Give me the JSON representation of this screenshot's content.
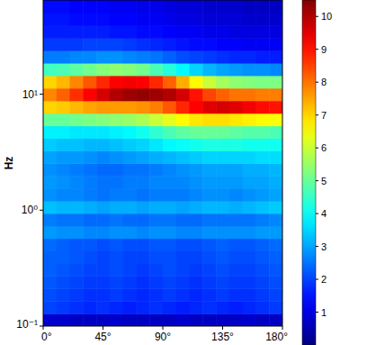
{
  "chart_data": {
    "type": "heatmap",
    "y_label": "Hz",
    "log": "y",
    "x": [
      5,
      15,
      25,
      35,
      45,
      55,
      65,
      75,
      85,
      95,
      105,
      115,
      125,
      135,
      145,
      155,
      165,
      175
    ],
    "y": [
      0.113,
      0.145,
      0.186,
      0.239,
      0.306,
      0.393,
      0.504,
      0.646,
      0.828,
      1.06,
      1.36,
      1.75,
      2.24,
      2.87,
      3.68,
      4.72,
      6.05,
      7.76,
      9.95,
      12.8,
      16.4,
      21.0,
      26.9,
      34.5,
      44.3,
      56.8
    ],
    "xlim": [
      0,
      180
    ],
    "ylim": [
      0.1,
      65
    ],
    "xticks": [
      {
        "value": 0,
        "label": "0°"
      },
      {
        "value": 45,
        "label": "45°"
      },
      {
        "value": 90,
        "label": "90°"
      },
      {
        "value": 135,
        "label": "135°"
      },
      {
        "value": 180,
        "label": "180°"
      }
    ],
    "yticks": [
      {
        "value": 0.1,
        "label": "10⁻¹"
      },
      {
        "value": 1,
        "label": "10⁰"
      },
      {
        "value": 10,
        "label": "10¹"
      }
    ],
    "colorbar": {
      "range": [
        0,
        10.5
      ],
      "ticks": [
        1,
        2,
        3,
        4,
        5,
        6,
        7,
        8,
        9,
        10
      ]
    },
    "values": [
      [
        0.8,
        0.8,
        0.7,
        0.7,
        0.7,
        0.8,
        0.7,
        0.7,
        0.7,
        0.7,
        0.8,
        0.7,
        0.7,
        0.7,
        0.7,
        0.8,
        0.7,
        0.7
      ],
      [
        2.0,
        1.9,
        1.8,
        1.7,
        1.8,
        1.7,
        1.6,
        1.7,
        1.8,
        1.7,
        1.6,
        1.7,
        1.8,
        1.7,
        1.6,
        1.7,
        1.8,
        1.9
      ],
      [
        2.1,
        2.0,
        1.9,
        1.8,
        1.8,
        1.9,
        1.8,
        1.7,
        1.8,
        1.9,
        1.8,
        1.7,
        1.8,
        1.9,
        1.8,
        1.8,
        1.9,
        2.0
      ],
      [
        2.2,
        2.1,
        2.0,
        1.9,
        1.9,
        2.0,
        1.9,
        1.8,
        1.9,
        2.0,
        1.9,
        1.8,
        1.9,
        2.0,
        1.9,
        1.9,
        2.0,
        2.1
      ],
      [
        2.3,
        2.2,
        2.1,
        2.0,
        2.0,
        2.1,
        2.0,
        1.9,
        2.0,
        2.1,
        2.0,
        1.9,
        2.0,
        2.1,
        2.0,
        2.0,
        2.1,
        2.2
      ],
      [
        2.3,
        2.3,
        2.2,
        2.1,
        2.0,
        2.1,
        2.0,
        2.0,
        2.1,
        2.1,
        2.0,
        2.0,
        2.1,
        2.2,
        2.1,
        2.1,
        2.2,
        2.3
      ],
      [
        2.4,
        2.3,
        2.2,
        2.2,
        2.1,
        2.2,
        2.1,
        2.1,
        2.2,
        2.2,
        2.1,
        2.1,
        2.2,
        2.3,
        2.2,
        2.2,
        2.3,
        2.4
      ],
      [
        2.9,
        2.8,
        2.8,
        2.7,
        2.7,
        2.8,
        2.8,
        2.7,
        2.8,
        2.8,
        2.7,
        2.7,
        2.8,
        2.8,
        2.8,
        2.8,
        2.9,
        2.9
      ],
      [
        2.6,
        2.5,
        2.5,
        2.4,
        2.4,
        2.5,
        2.4,
        2.4,
        2.5,
        2.5,
        2.4,
        2.4,
        2.5,
        2.5,
        2.5,
        2.5,
        2.6,
        2.7
      ],
      [
        3.3,
        3.2,
        3.2,
        3.1,
        3.0,
        3.1,
        3.1,
        3.0,
        3.1,
        3.1,
        3.0,
        3.1,
        3.2,
        3.2,
        3.1,
        3.2,
        3.3,
        3.4
      ],
      [
        2.8,
        2.7,
        2.7,
        2.6,
        2.5,
        2.6,
        2.6,
        2.5,
        2.6,
        2.6,
        2.6,
        2.7,
        2.8,
        2.8,
        2.7,
        2.8,
        2.9,
        3.0
      ],
      [
        2.9,
        2.8,
        2.7,
        2.6,
        2.5,
        2.5,
        2.6,
        2.6,
        2.7,
        2.7,
        2.7,
        2.8,
        2.9,
        2.9,
        2.9,
        3.0,
        3.0,
        3.1
      ],
      [
        2.8,
        2.7,
        2.6,
        2.5,
        2.4,
        2.4,
        2.5,
        2.5,
        2.6,
        2.7,
        2.8,
        2.9,
        3.0,
        3.0,
        3.0,
        3.1,
        3.1,
        3.2
      ],
      [
        3.0,
        2.9,
        2.9,
        2.8,
        2.7,
        2.8,
        2.9,
        3.0,
        3.1,
        3.2,
        3.3,
        3.4,
        3.5,
        3.5,
        3.5,
        3.5,
        3.6,
        3.6
      ],
      [
        3.4,
        3.3,
        3.3,
        3.2,
        3.2,
        3.3,
        3.4,
        3.5,
        3.7,
        3.9,
        4.0,
        4.1,
        4.2,
        4.2,
        4.2,
        4.1,
        4.1,
        4.1
      ],
      [
        3.8,
        3.8,
        3.7,
        3.7,
        3.7,
        3.8,
        3.9,
        4.1,
        4.4,
        4.7,
        4.9,
        5.0,
        5.0,
        5.0,
        4.9,
        4.8,
        4.8,
        4.7
      ],
      [
        5.0,
        5.0,
        5.1,
        5.2,
        5.3,
        5.4,
        5.5,
        5.7,
        6.0,
        6.3,
        6.6,
        6.8,
        6.9,
        6.9,
        6.8,
        6.7,
        6.6,
        6.5
      ],
      [
        7.0,
        7.1,
        7.3,
        7.5,
        7.6,
        7.6,
        7.6,
        7.7,
        7.9,
        8.3,
        8.8,
        9.2,
        9.5,
        9.6,
        9.5,
        9.3,
        9.1,
        9.0
      ],
      [
        7.8,
        8.2,
        8.7,
        9.2,
        9.6,
        10.0,
        10.2,
        10.3,
        10.2,
        10.0,
        9.6,
        9.0,
        8.5,
        8.2,
        8.0,
        8.0,
        7.9,
        7.9
      ],
      [
        7.0,
        7.3,
        7.8,
        8.3,
        8.8,
        9.2,
        9.3,
        9.2,
        8.8,
        8.2,
        7.4,
        6.6,
        6.0,
        5.6,
        5.4,
        5.3,
        5.2,
        5.2
      ],
      [
        4.6,
        4.7,
        4.9,
        5.1,
        5.3,
        5.4,
        5.3,
        5.1,
        4.7,
        4.3,
        3.9,
        3.5,
        3.2,
        3.0,
        2.9,
        2.8,
        2.8,
        2.7
      ],
      [
        2.6,
        2.6,
        2.7,
        2.7,
        2.8,
        2.8,
        2.7,
        2.6,
        2.5,
        2.3,
        2.1,
        2.0,
        1.9,
        1.8,
        1.7,
        1.7,
        1.6,
        1.6
      ],
      [
        1.9,
        1.9,
        1.9,
        2.0,
        2.0,
        2.0,
        1.9,
        1.8,
        1.7,
        1.6,
        1.5,
        1.4,
        1.4,
        1.3,
        1.3,
        1.2,
        1.2,
        1.2
      ],
      [
        1.6,
        1.6,
        1.6,
        1.6,
        1.6,
        1.5,
        1.5,
        1.4,
        1.4,
        1.3,
        1.2,
        1.2,
        1.1,
        1.1,
        1.0,
        1.0,
        1.0,
        1.0
      ],
      [
        1.5,
        1.5,
        1.4,
        1.4,
        1.4,
        1.3,
        1.3,
        1.2,
        1.2,
        1.1,
        1.0,
        1.0,
        0.9,
        0.9,
        0.9,
        0.8,
        0.8,
        0.8
      ],
      [
        1.4,
        1.4,
        1.3,
        1.3,
        1.3,
        1.2,
        1.2,
        1.1,
        1.1,
        1.0,
        0.9,
        0.9,
        0.8,
        0.8,
        0.8,
        0.7,
        0.7,
        0.7
      ]
    ]
  }
}
